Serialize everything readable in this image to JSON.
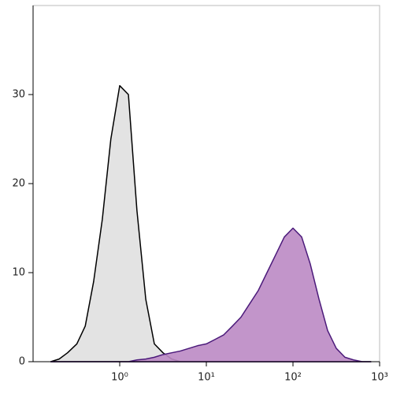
{
  "chart_data": {
    "type": "histogram-overlay",
    "x": [
      0.16,
      0.2,
      0.25,
      0.32,
      0.4,
      0.5,
      0.63,
      0.79,
      1,
      1.26,
      1.58,
      2,
      2.51,
      3.16,
      3.98,
      5.01,
      6.31,
      7.94,
      10,
      12.6,
      15.8,
      20,
      25.1,
      31.6,
      39.8,
      50.1,
      63.1,
      79.4,
      100,
      126,
      158,
      200,
      251,
      316,
      398,
      501,
      631,
      794
    ],
    "series": [
      {
        "color": "#000000",
        "fill": "#e0e0e0",
        "values": [
          0,
          0.3,
          1,
          2,
          4,
          9,
          16,
          25,
          31,
          30,
          17,
          7,
          2,
          1,
          0.3,
          0,
          0,
          0,
          0,
          0,
          0,
          0,
          0,
          0,
          0,
          0,
          0,
          0,
          0,
          0,
          0,
          0,
          0,
          0,
          0,
          0,
          0,
          0
        ]
      },
      {
        "color": "#4b1a7a",
        "fill": "#bb8ac4",
        "values": [
          0,
          0,
          0,
          0,
          0,
          0,
          0,
          0,
          0,
          0,
          0.2,
          0.3,
          0.5,
          0.8,
          1,
          1.2,
          1.5,
          1.8,
          2,
          2.5,
          3,
          4,
          5,
          6.5,
          8,
          10,
          12,
          14,
          15,
          14,
          11,
          7,
          3.5,
          1.5,
          0.5,
          0.2,
          0,
          0
        ]
      }
    ],
    "xlog": true,
    "xlim": [
      0.1,
      1000
    ],
    "xticks": [
      {
        "value": 1,
        "label": "10⁰"
      },
      {
        "value": 10,
        "label": "10¹"
      },
      {
        "value": 100,
        "label": "10²"
      },
      {
        "value": 1000,
        "label": "10³"
      }
    ],
    "ylim": [
      0,
      40
    ],
    "yticks": [
      0,
      10,
      20,
      30
    ]
  }
}
